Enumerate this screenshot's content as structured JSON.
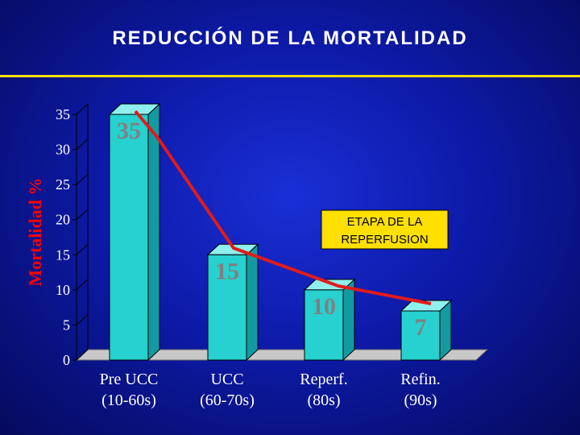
{
  "title": "REDUCCIÓN DE LA MORTALIDAD",
  "chart_data": {
    "type": "bar",
    "categories": [
      [
        "Pre UCC",
        "(10-60s)"
      ],
      [
        "UCC",
        "(60-70s)"
      ],
      [
        "Reperf.",
        "(80s)"
      ],
      [
        "Refin.",
        "(90s)"
      ]
    ],
    "values": [
      35,
      15,
      10,
      7
    ],
    "data_labels": [
      "35",
      "15",
      "10",
      "7"
    ],
    "ylabel": "Mortalidad %",
    "ylim": [
      0,
      35
    ],
    "yticks": [
      0,
      5,
      10,
      15,
      20,
      25,
      30,
      35
    ],
    "trend_line": true,
    "annotation": [
      "ETAPA  DE LA",
      "REPERFUSION"
    ],
    "colors": {
      "bar_front": "#26d1cf",
      "bar_side": "#139aa0",
      "bar_top": "#8ff0ee",
      "floor": "#c8c8c8",
      "trend": "#e11b1b",
      "axis_text": "#ffffff",
      "data_label": "#808080",
      "annotation_bg": "#ffe000"
    }
  }
}
